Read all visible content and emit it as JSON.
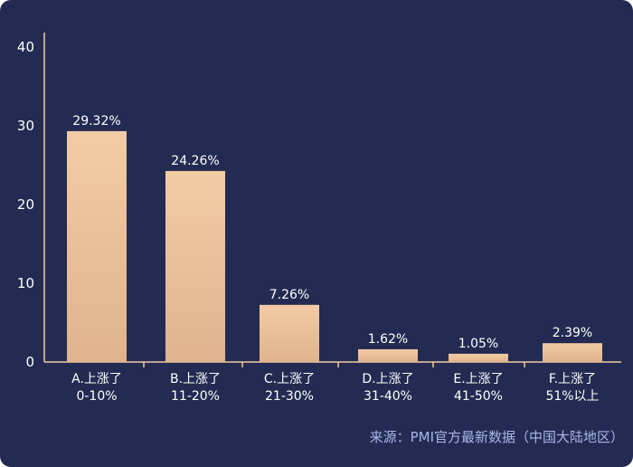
{
  "chart_data": {
    "type": "bar",
    "categories": [
      [
        "A.上涨了",
        "0-10%"
      ],
      [
        "B.上涨了",
        "11-20%"
      ],
      [
        "C.上涨了",
        "21-30%"
      ],
      [
        "D.上涨了",
        "31-40%"
      ],
      [
        "E.上涨了",
        "41-50%"
      ],
      [
        "F.上涨了",
        "51%以上"
      ]
    ],
    "values": [
      29.32,
      24.26,
      7.26,
      1.62,
      1.05,
      2.39
    ],
    "value_labels": [
      "29.32%",
      "24.26%",
      "7.26%",
      "1.62%",
      "1.05%",
      "2.39%"
    ],
    "ylim": [
      0,
      40
    ],
    "yticks": [
      0,
      10,
      20,
      30,
      40
    ],
    "grid": false,
    "bar_color_top": "#f2cba4",
    "bar_color_bottom": "#e0b38d",
    "background_color": "#232b52"
  },
  "source_text": "来源：PMI官方最新数据（中国大陆地区）"
}
